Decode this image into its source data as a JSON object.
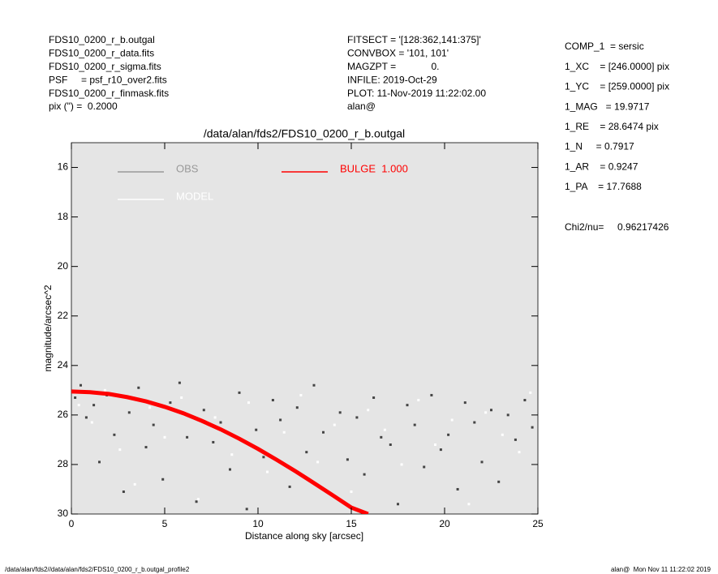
{
  "header": {
    "left": [
      "FDS10_0200_r_b.outgal",
      "FDS10_0200_r_data.fits",
      "FDS10_0200_r_sigma.fits",
      "PSF     = psf_r10_over2.fits",
      "FDS10_0200_r_finmask.fits",
      "pix (\") =  0.2000"
    ],
    "middle": [
      "FITSECT = '[128:362,141:375]'",
      "CONVBOX = '101, 101'",
      "MAGZPT =             0.",
      "INFILE: 2019-Oct-29",
      "PLOT: 11-Nov-2019 11:22:02.00",
      "alan@"
    ],
    "right": [
      "COMP_1  = sersic",
      "1_XC    = [246.0000] pix",
      "1_YC    = [259.0000] pix",
      "1_MAG   = 19.9717",
      "1_RE    = 28.6474 pix",
      "1_N     = 0.7917",
      "1_AR    = 0.9247",
      "1_PA    = 17.7688"
    ],
    "chi2": "Chi2/nu=     0.96217426"
  },
  "footer": {
    "left": "/data/alan/fds2//data/alan/fds2/FDS10_0200_r_b.outgal_profile2",
    "right": "alan@  Mon Nov 11 11:22:02 2019"
  },
  "chart_data": {
    "type": "scatter",
    "title": "/data/alan/fds2/FDS10_0200_r_b.outgal",
    "x_label": "Distance along sky [arcsec]",
    "y_label": "magnitude/arcsec^2",
    "xlim": [
      0,
      25
    ],
    "ylim": [
      30,
      15
    ],
    "xticks": [
      0,
      5,
      10,
      15,
      20,
      25
    ],
    "yticks": [
      16,
      18,
      20,
      22,
      24,
      26,
      28,
      30
    ],
    "background": "#e5e5e5",
    "series": [
      {
        "name": "OBS",
        "color": "#444444",
        "label_color": "#999999",
        "mode": "points",
        "x": [
          0.2,
          0.5,
          0.8,
          1.2,
          1.5,
          1.9,
          2.3,
          2.8,
          3.1,
          3.6,
          4.0,
          4.4,
          4.9,
          5.3,
          5.8,
          6.2,
          6.7,
          7.1,
          7.6,
          8.0,
          8.5,
          9.0,
          9.4,
          9.9,
          10.3,
          10.8,
          11.2,
          11.7,
          12.1,
          12.6,
          13.0,
          13.5,
          13.9,
          14.4,
          14.8,
          15.3,
          15.7,
          16.2,
          16.6,
          17.1,
          17.5,
          18.0,
          18.4,
          18.9,
          19.3,
          19.8,
          20.2,
          20.7,
          21.1,
          21.6,
          22.0,
          22.5,
          22.9,
          23.4,
          23.8,
          24.3,
          24.7
        ],
        "values": [
          25.3,
          24.8,
          26.1,
          25.6,
          27.9,
          25.2,
          26.8,
          29.1,
          25.9,
          24.9,
          27.3,
          26.4,
          28.6,
          25.5,
          24.7,
          26.9,
          29.5,
          25.8,
          27.1,
          26.3,
          28.2,
          25.1,
          29.8,
          26.6,
          27.7,
          25.4,
          26.2,
          28.9,
          25.7,
          27.5,
          24.8,
          26.7,
          29.2,
          25.9,
          27.8,
          26.1,
          28.4,
          25.3,
          26.9,
          27.2,
          29.6,
          25.6,
          26.4,
          28.1,
          25.2,
          27.4,
          26.8,
          29.0,
          25.5,
          26.3,
          27.9,
          25.8,
          28.7,
          26.0,
          27.0,
          25.4,
          26.5
        ]
      },
      {
        "name": "MODEL",
        "color": "#ffffff",
        "label_color": "#ffffff",
        "mode": "points",
        "x": [
          0.4,
          1.1,
          1.8,
          2.6,
          3.4,
          4.2,
          5.0,
          5.9,
          6.8,
          7.7,
          8.6,
          9.5,
          10.5,
          11.4,
          12.3,
          13.2,
          14.1,
          15.0,
          15.9,
          16.8,
          17.7,
          18.6,
          19.5,
          20.4,
          21.3,
          22.2,
          23.1,
          24.0,
          24.6
        ],
        "values": [
          25.6,
          26.3,
          25.0,
          27.4,
          28.8,
          25.7,
          26.9,
          25.3,
          29.4,
          26.1,
          27.6,
          25.5,
          28.3,
          26.7,
          25.2,
          27.9,
          26.4,
          29.1,
          25.8,
          26.6,
          28.0,
          25.4,
          27.2,
          26.2,
          29.6,
          25.9,
          26.8,
          27.5,
          25.1
        ]
      },
      {
        "name": "BULGE  1.000",
        "color": "#ff0000",
        "label_color": "#ff0000",
        "mode": "line",
        "x": [
          0,
          1,
          2,
          3,
          4,
          5,
          6,
          7,
          8,
          9,
          10,
          11,
          12,
          13,
          14,
          15,
          15.9
        ],
        "values": [
          25.05,
          25.08,
          25.15,
          25.28,
          25.45,
          25.67,
          25.93,
          26.24,
          26.58,
          26.96,
          27.37,
          27.81,
          28.27,
          28.75,
          29.24,
          29.74,
          30.0
        ]
      }
    ]
  }
}
